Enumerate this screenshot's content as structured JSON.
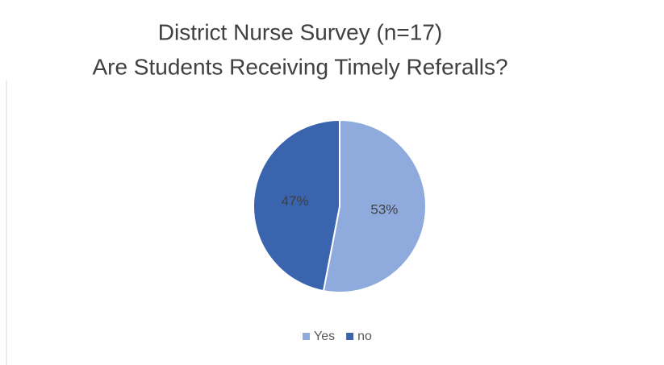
{
  "chart_data": {
    "type": "pie",
    "title": [
      "District Nurse Survey (n=17)",
      "Are Students Receiving Timely Referalls?"
    ],
    "categories": [
      "Yes",
      "no"
    ],
    "values": [
      53,
      47
    ],
    "value_labels": [
      "53%",
      "47%"
    ],
    "colors": [
      "#8faadc",
      "#3a64ad"
    ],
    "legend": "bottom"
  }
}
